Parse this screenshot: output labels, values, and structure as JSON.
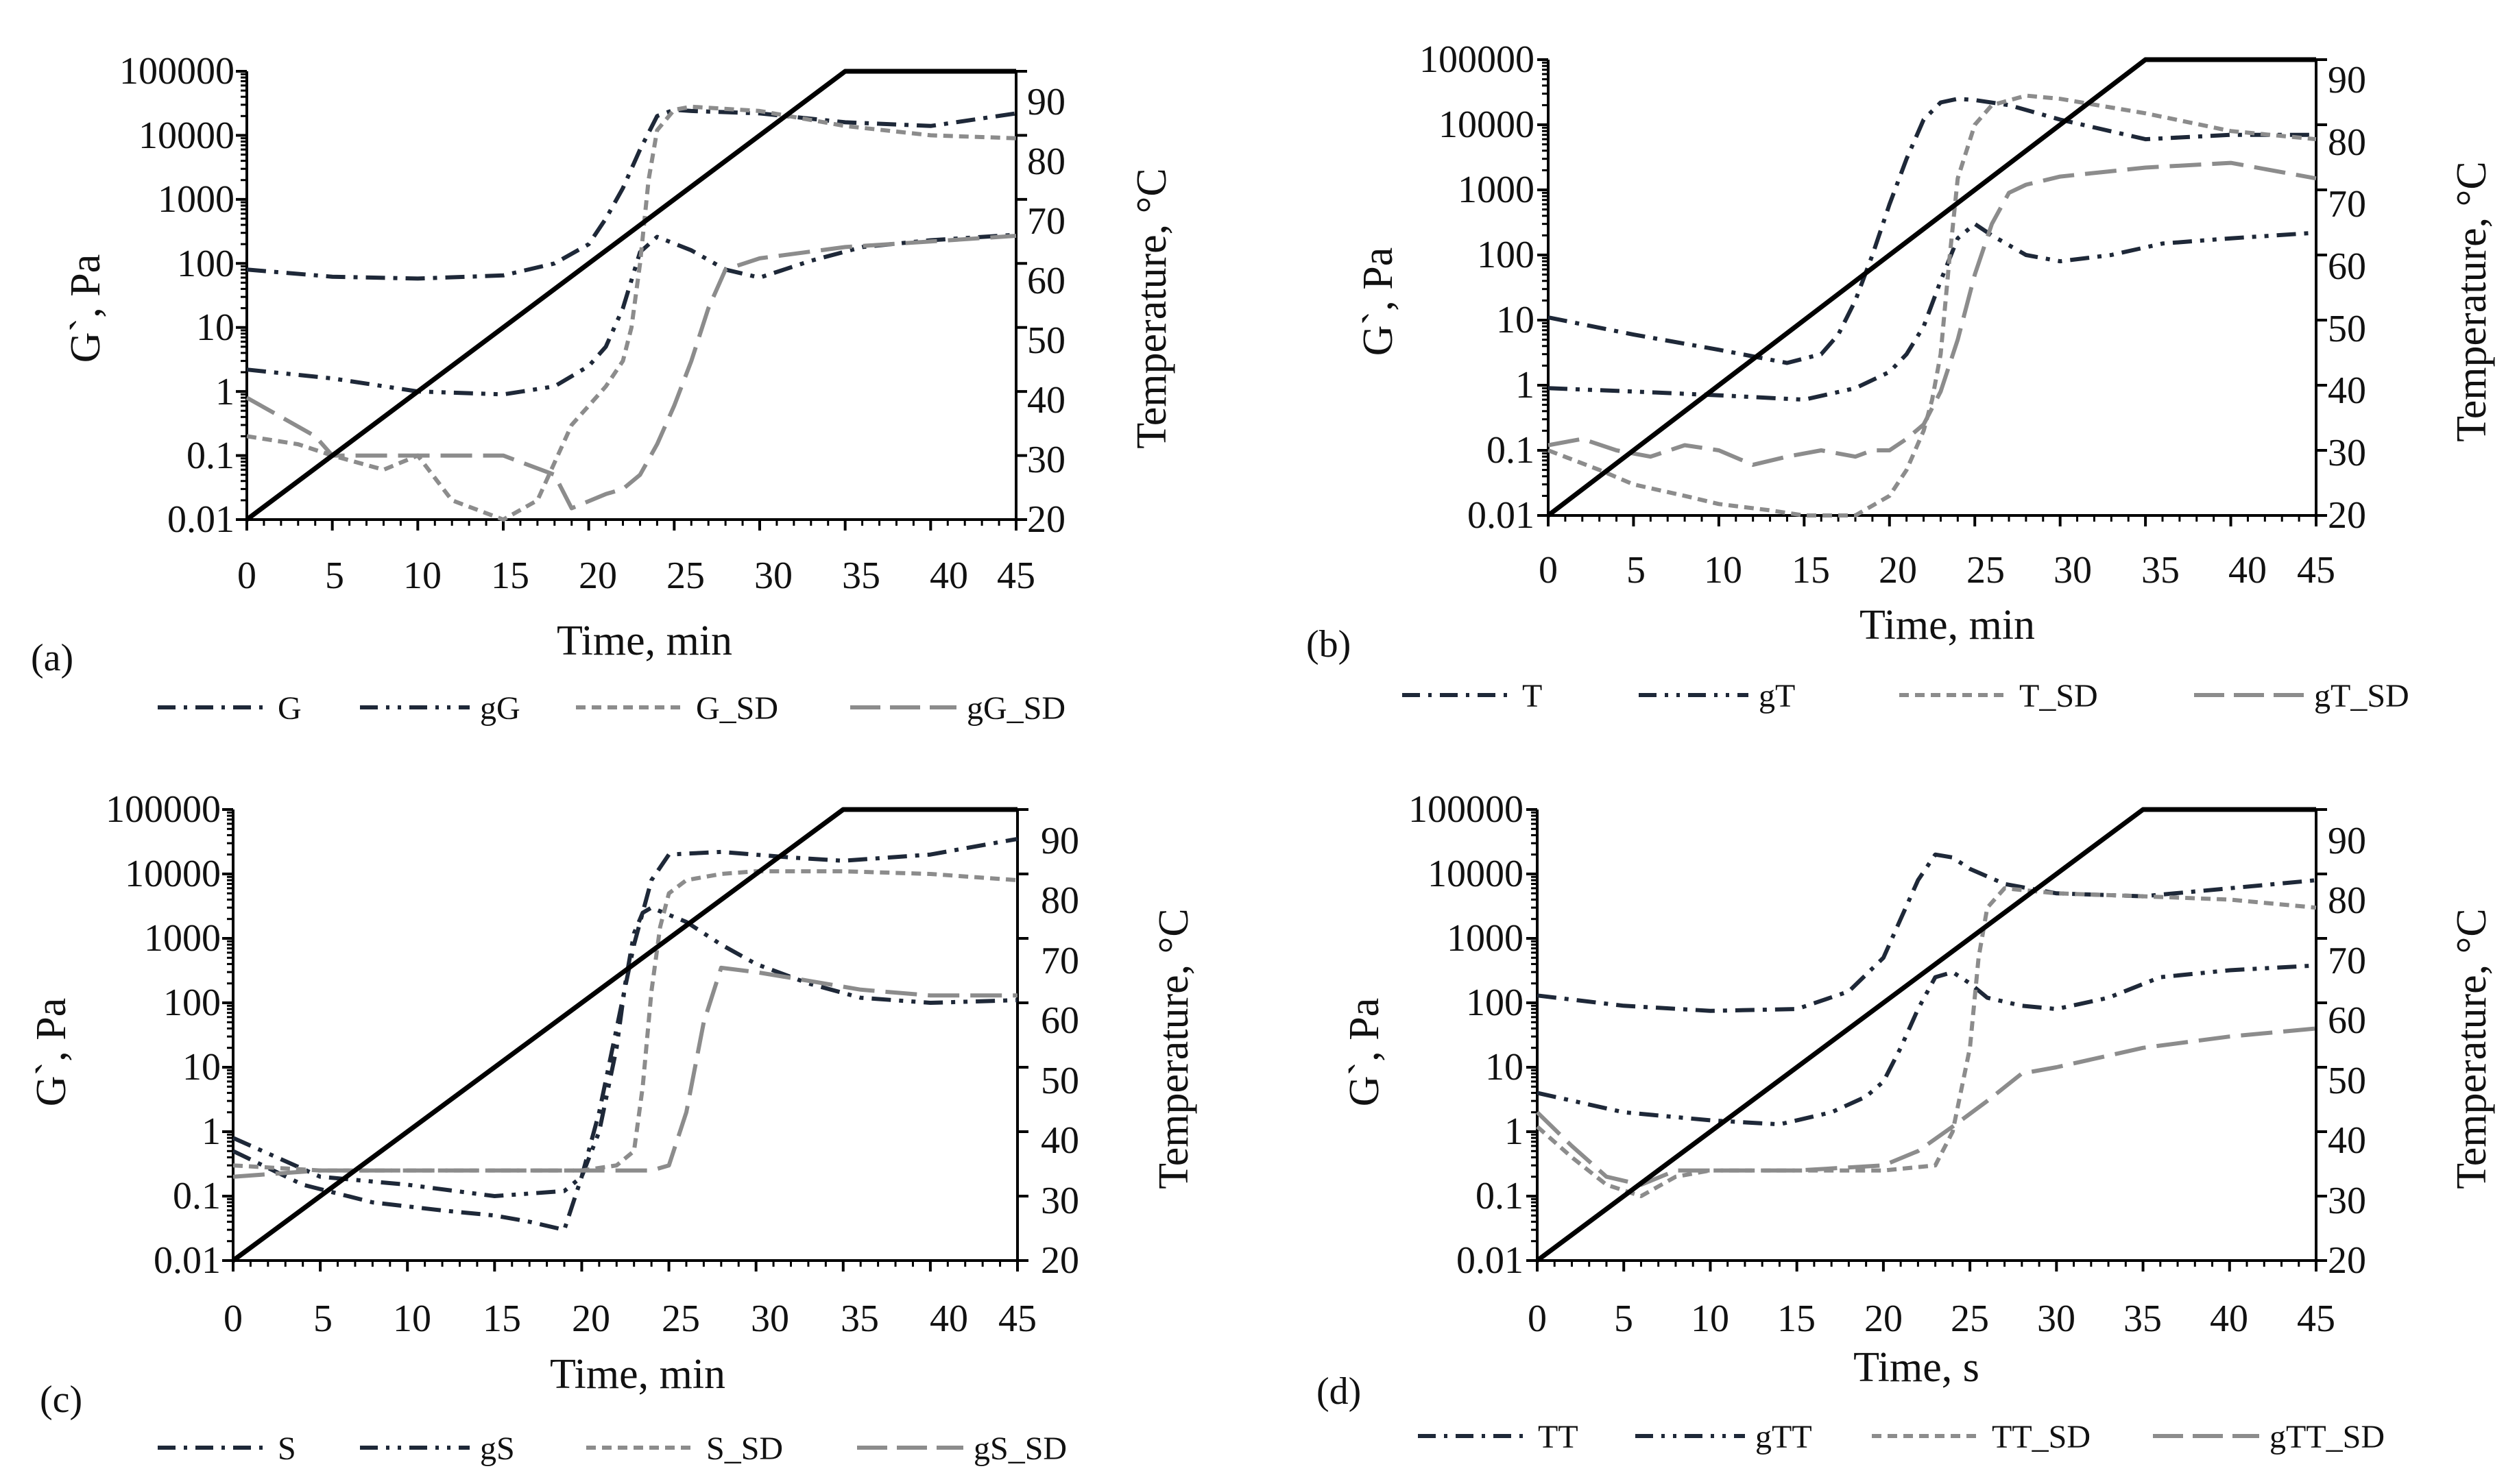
{
  "figure": {
    "colors": {
      "dark": "#1e2838",
      "gray": "#8c8c8c",
      "temperature": "#000000",
      "axis": "#000000"
    },
    "panels": [
      {
        "id": "a",
        "panel_label": "(a)",
        "xlabel": "Time,  min",
        "ylabel_left": "G`,  Pa",
        "ylabel_right": "Temperature, °C",
        "xticks": [
          "0",
          "5",
          "10",
          "15",
          "20",
          "25",
          "30",
          "35",
          "40",
          "45"
        ],
        "yticks_left": [
          "0.01",
          "0.1",
          "1",
          "10",
          "100",
          "1000",
          "10000",
          "100000"
        ],
        "yticks_right": [
          "20",
          "30",
          "40",
          "50",
          "60",
          "70",
          "80",
          "90"
        ],
        "legend": [
          "G",
          "gG",
          "G_SD",
          "gG_SD"
        ]
      },
      {
        "id": "b",
        "panel_label": "(b)",
        "xlabel": "Time,  min",
        "ylabel_left": "G`,  Pa",
        "ylabel_right": "Temperature, °C",
        "xticks": [
          "0",
          "5",
          "10",
          "15",
          "20",
          "25",
          "30",
          "35",
          "40",
          "45"
        ],
        "yticks_left": [
          "0.01",
          "0.1",
          "1",
          "10",
          "100",
          "1000",
          "10000",
          "100000"
        ],
        "yticks_right": [
          "20",
          "30",
          "40",
          "50",
          "60",
          "70",
          "80",
          "90"
        ],
        "legend": [
          "T",
          "gT",
          "T_SD",
          "gT_SD"
        ]
      },
      {
        "id": "c",
        "panel_label": "(c)",
        "xlabel": "Time,  min",
        "ylabel_left": "G`,  Pa",
        "ylabel_right": "Temperature, °C",
        "xticks": [
          "0",
          "5",
          "10",
          "15",
          "20",
          "25",
          "30",
          "35",
          "40",
          "45"
        ],
        "yticks_left": [
          "0.01",
          "0.1",
          "1",
          "10",
          "100",
          "1000",
          "10000",
          "100000"
        ],
        "yticks_right": [
          "20",
          "30",
          "40",
          "50",
          "60",
          "70",
          "80",
          "90"
        ],
        "legend": [
          "S",
          "gS",
          "S_SD",
          "gS_SD"
        ]
      },
      {
        "id": "d",
        "panel_label": "(d)",
        "xlabel": "Time,  s",
        "ylabel_left": "G`,  Pa",
        "ylabel_right": "Temperature, °C",
        "xticks": [
          "0",
          "5",
          "10",
          "15",
          "20",
          "25",
          "30",
          "35",
          "40",
          "45"
        ],
        "yticks_left": [
          "0.01",
          "0.1",
          "1",
          "10",
          "100",
          "1000",
          "10000",
          "100000"
        ],
        "yticks_right": [
          "20",
          "30",
          "40",
          "50",
          "60",
          "70",
          "80",
          "90"
        ],
        "legend": [
          "TT",
          "gTT",
          "TT_SD",
          "gTT_SD"
        ]
      }
    ]
  },
  "chart_data": [
    {
      "type": "line",
      "panel": "(a)",
      "xlabel": "Time,  min",
      "ylabel": "G`,  Pa",
      "y2label": "Temperature, °C",
      "xlim": [
        0,
        45
      ],
      "ylim": [
        0.01,
        100000
      ],
      "yscale": "log",
      "y2lim": [
        20,
        90
      ],
      "series": [
        {
          "name": "G",
          "style": "dash-dot",
          "color": "dark",
          "x": [
            0,
            5,
            10,
            15,
            18,
            20,
            21,
            22,
            23,
            24,
            25,
            26,
            30,
            35,
            40,
            45
          ],
          "y": [
            80,
            62,
            58,
            65,
            100,
            200,
            500,
            1500,
            6000,
            20000,
            25000,
            24000,
            22000,
            16000,
            14000,
            22000
          ]
        },
        {
          "name": "gG",
          "style": "dash-dot-dot",
          "color": "dark",
          "x": [
            0,
            5,
            10,
            15,
            18,
            20,
            21,
            22,
            23,
            24,
            26,
            28,
            30,
            33,
            36,
            40,
            45
          ],
          "y": [
            2.2,
            1.6,
            1.0,
            0.9,
            1.2,
            2.5,
            5,
            20,
            150,
            260,
            160,
            80,
            60,
            110,
            180,
            230,
            280
          ]
        },
        {
          "name": "G_SD",
          "style": "short-dash",
          "color": "gray",
          "x": [
            0,
            3,
            5,
            8,
            10,
            12,
            15,
            17,
            19,
            20,
            21,
            22,
            22.5,
            23,
            23.5,
            24,
            25,
            26,
            30,
            35,
            40,
            45
          ],
          "y": [
            0.2,
            0.15,
            0.1,
            0.06,
            0.1,
            0.02,
            0.01,
            0.02,
            0.3,
            0.6,
            1.2,
            3,
            10,
            100,
            2000,
            12000,
            25000,
            28000,
            24000,
            14000,
            10000,
            9000
          ]
        },
        {
          "name": "gG_SD",
          "style": "long-dash",
          "color": "gray",
          "x": [
            0,
            2,
            4,
            5,
            8,
            12,
            15,
            18,
            19,
            21,
            22,
            23,
            24,
            25,
            26,
            27,
            28,
            30,
            35,
            40,
            45
          ],
          "y": [
            0.8,
            0.4,
            0.2,
            0.1,
            0.1,
            0.1,
            0.1,
            0.05,
            0.015,
            0.025,
            0.03,
            0.05,
            0.15,
            0.6,
            3,
            20,
            80,
            120,
            180,
            220,
            270
          ]
        },
        {
          "name": "Temperature",
          "axis": "right",
          "style": "solid",
          "color": "temperature",
          "x": [
            0,
            35,
            45
          ],
          "y": [
            20,
            90,
            90
          ]
        }
      ]
    },
    {
      "type": "line",
      "panel": "(b)",
      "xlabel": "Time,  min",
      "ylabel": "G`,  Pa",
      "y2label": "Temperature, °C",
      "xlim": [
        0,
        45
      ],
      "ylim": [
        0.01,
        100000
      ],
      "yscale": "log",
      "y2lim": [
        20,
        90
      ],
      "series": [
        {
          "name": "T",
          "style": "dash-dot",
          "color": "dark",
          "x": [
            0,
            5,
            10,
            14,
            16,
            17,
            18,
            19,
            20,
            21,
            22,
            23,
            24,
            25,
            27,
            30,
            35,
            40,
            45
          ],
          "y": [
            11,
            6,
            3.5,
            2.2,
            3,
            6,
            20,
            100,
            600,
            3000,
            12000,
            22000,
            25000,
            24000,
            20000,
            12000,
            6000,
            7000,
            7000
          ]
        },
        {
          "name": "gT",
          "style": "dash-dot-dot",
          "color": "dark",
          "x": [
            0,
            5,
            10,
            15,
            18,
            20,
            21,
            22,
            23,
            24,
            25,
            26,
            28,
            30,
            33,
            36,
            40,
            45
          ],
          "y": [
            0.9,
            0.8,
            0.7,
            0.6,
            0.9,
            1.6,
            3,
            8,
            40,
            180,
            300,
            200,
            100,
            80,
            100,
            150,
            180,
            220
          ]
        },
        {
          "name": "T_SD",
          "style": "short-dash",
          "color": "gray",
          "x": [
            0,
            3,
            5,
            8,
            10,
            13,
            15,
            18,
            20,
            21,
            22,
            22.5,
            23,
            23.5,
            24,
            25,
            26,
            28,
            30,
            35,
            40,
            45
          ],
          "y": [
            0.1,
            0.05,
            0.03,
            0.02,
            0.015,
            0.012,
            0.01,
            0.01,
            0.02,
            0.05,
            0.2,
            0.6,
            3,
            80,
            1500,
            10000,
            20000,
            28000,
            25000,
            15000,
            8000,
            6000
          ]
        },
        {
          "name": "gT_SD",
          "style": "long-dash",
          "color": "gray",
          "x": [
            0,
            2,
            4,
            6,
            8,
            10,
            12,
            14,
            16,
            18,
            19,
            20,
            21,
            22,
            23,
            24,
            25,
            26,
            27,
            28,
            30,
            35,
            40,
            45
          ],
          "y": [
            0.12,
            0.15,
            0.1,
            0.08,
            0.12,
            0.1,
            0.06,
            0.08,
            0.1,
            0.08,
            0.1,
            0.1,
            0.15,
            0.25,
            0.8,
            5,
            50,
            300,
            900,
            1200,
            1600,
            2200,
            2600,
            1500
          ]
        },
        {
          "name": "Temperature",
          "axis": "right",
          "style": "solid",
          "color": "temperature",
          "x": [
            0,
            35,
            45
          ],
          "y": [
            20,
            90,
            90
          ]
        }
      ]
    },
    {
      "type": "line",
      "panel": "(c)",
      "xlabel": "Time,  min",
      "ylabel": "G`,  Pa",
      "y2label": "Temperature, °C",
      "xlim": [
        0,
        45
      ],
      "ylim": [
        0.01,
        100000
      ],
      "yscale": "log",
      "y2lim": [
        20,
        90
      ],
      "series": [
        {
          "name": "S",
          "style": "dash-dot",
          "color": "dark",
          "x": [
            0,
            4,
            8,
            12,
            15,
            17,
            19,
            20,
            21,
            22,
            23,
            24,
            25,
            28,
            32,
            35,
            40,
            45
          ],
          "y": [
            0.5,
            0.15,
            0.08,
            0.06,
            0.05,
            0.04,
            0.03,
            0.2,
            2,
            40,
            800,
            8000,
            20000,
            22000,
            18000,
            16000,
            20000,
            35000
          ]
        },
        {
          "name": "gS",
          "style": "dash-dot-dot",
          "color": "dark",
          "x": [
            0,
            5,
            10,
            15,
            19,
            20,
            21,
            22,
            22.5,
            23,
            23.5,
            24,
            26,
            28,
            30,
            33,
            36,
            40,
            45
          ],
          "y": [
            0.8,
            0.2,
            0.15,
            0.1,
            0.12,
            0.2,
            1,
            20,
            200,
            1200,
            2500,
            3000,
            1800,
            800,
            400,
            200,
            120,
            100,
            110
          ]
        },
        {
          "name": "S_SD",
          "style": "short-dash",
          "color": "gray",
          "x": [
            0,
            5,
            10,
            15,
            20,
            22,
            23,
            23.5,
            24,
            24.5,
            25,
            26,
            28,
            30,
            35,
            40,
            45
          ],
          "y": [
            0.3,
            0.25,
            0.25,
            0.25,
            0.25,
            0.3,
            0.5,
            5,
            150,
            1500,
            5000,
            8000,
            10000,
            11000,
            11000,
            10000,
            8000
          ]
        },
        {
          "name": "gS_SD",
          "style": "long-dash",
          "color": "gray",
          "x": [
            0,
            5,
            10,
            15,
            20,
            24,
            25,
            26,
            27,
            28,
            30,
            33,
            36,
            40,
            45
          ],
          "y": [
            0.2,
            0.25,
            0.25,
            0.25,
            0.25,
            0.25,
            0.3,
            2,
            50,
            350,
            300,
            220,
            160,
            130,
            130
          ]
        },
        {
          "name": "Temperature",
          "axis": "right",
          "style": "solid",
          "color": "temperature",
          "x": [
            0,
            35,
            45
          ],
          "y": [
            20,
            90,
            90
          ]
        }
      ]
    },
    {
      "type": "line",
      "panel": "(d)",
      "xlabel": "Time,  s",
      "ylabel": "G`,  Pa",
      "y2label": "Temperature, °C",
      "xlim": [
        0,
        45
      ],
      "ylim": [
        0.01,
        100000
      ],
      "yscale": "log",
      "y2lim": [
        20,
        90
      ],
      "series": [
        {
          "name": "TT",
          "style": "dash-dot",
          "color": "dark",
          "x": [
            0,
            5,
            10,
            15,
            18,
            20,
            21,
            22,
            23,
            24,
            25,
            27,
            30,
            35,
            40,
            45
          ],
          "y": [
            130,
            90,
            75,
            80,
            150,
            500,
            2000,
            8000,
            20000,
            18000,
            12000,
            7000,
            5000,
            4500,
            6000,
            8000
          ]
        },
        {
          "name": "gTT",
          "style": "dash-dot-dot",
          "color": "dark",
          "x": [
            0,
            5,
            10,
            14,
            17,
            19,
            20,
            21,
            22,
            23,
            24,
            25,
            26,
            28,
            30,
            33,
            36,
            40,
            45
          ],
          "y": [
            4,
            2,
            1.5,
            1.3,
            2,
            3.5,
            6,
            20,
            80,
            250,
            300,
            200,
            120,
            90,
            80,
            120,
            250,
            320,
            380
          ]
        },
        {
          "name": "TT_SD",
          "style": "short-dash",
          "color": "gray",
          "x": [
            0,
            2,
            4,
            6,
            8,
            10,
            15,
            20,
            23,
            24,
            25,
            25.5,
            26,
            27,
            30,
            35,
            40,
            45
          ],
          "y": [
            1.2,
            0.4,
            0.15,
            0.1,
            0.2,
            0.25,
            0.25,
            0.25,
            0.3,
            1,
            20,
            500,
            3000,
            6000,
            5000,
            4500,
            4000,
            3000
          ]
        },
        {
          "name": "gTT_SD",
          "style": "long-dash",
          "color": "gray",
          "x": [
            0,
            2,
            4,
            6,
            8,
            10,
            15,
            20,
            22,
            24,
            26,
            28,
            30,
            35,
            40,
            45
          ],
          "y": [
            2,
            0.6,
            0.2,
            0.15,
            0.25,
            0.25,
            0.25,
            0.3,
            0.5,
            1.2,
            3,
            8,
            10,
            20,
            30,
            40
          ]
        },
        {
          "name": "Temperature",
          "axis": "right",
          "style": "solid",
          "color": "temperature",
          "x": [
            0,
            35,
            45
          ],
          "y": [
            20,
            90,
            90
          ]
        }
      ]
    }
  ]
}
